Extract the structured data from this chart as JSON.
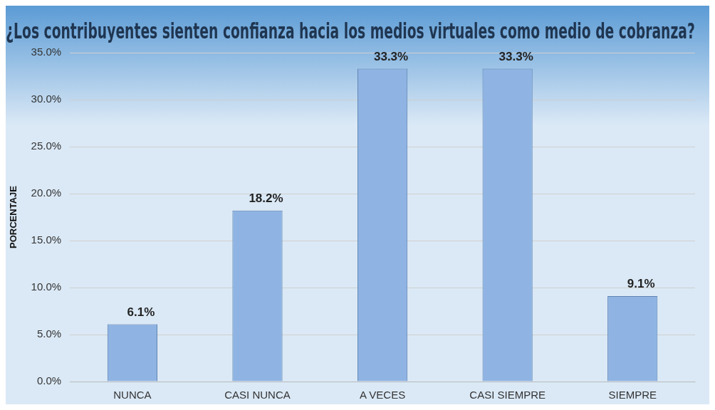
{
  "chart_data": {
    "type": "bar",
    "title": "¿Los contribuyentes sienten confianza hacia los medios virtuales como medio de cobranza?",
    "ylabel": "PORCENTAJE",
    "categories": [
      "NUNCA",
      "CASI NUNCA",
      "A VECES",
      "CASI SIEMPRE",
      "SIEMPRE"
    ],
    "values": [
      6.1,
      18.2,
      33.3,
      33.3,
      9.1
    ],
    "value_labels": [
      "6.1%",
      "18.2%",
      "33.3%",
      "33.3%",
      "9.1%"
    ],
    "color": "#8fb4e3",
    "ylim": [
      0,
      35
    ],
    "yticks": [
      {
        "value": 0,
        "label": "0.0%"
      },
      {
        "value": 5,
        "label": "5.0%"
      },
      {
        "value": 10,
        "label": "10.0%"
      },
      {
        "value": 15,
        "label": "15.0%"
      },
      {
        "value": 20,
        "label": "20.0%"
      },
      {
        "value": 25,
        "label": "25.0%"
      },
      {
        "value": 30,
        "label": "30.0%"
      },
      {
        "value": 35,
        "label": "35.0%"
      }
    ],
    "grid": "y",
    "legend": false
  }
}
